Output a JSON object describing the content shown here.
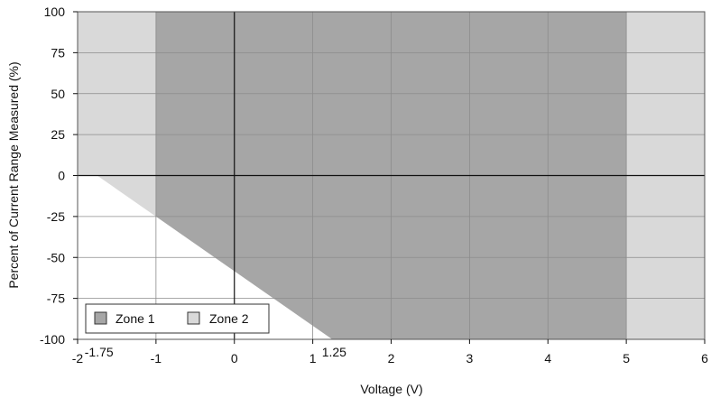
{
  "chart_data": {
    "type": "area",
    "title": "",
    "xlabel": "Voltage (V)",
    "ylabel": "Percent of Current Range Measured (%)",
    "xlim": [
      -2,
      6
    ],
    "ylim": [
      -100,
      100
    ],
    "grid": true,
    "x_ticks": [
      {
        "value": -2,
        "label": "-2"
      },
      {
        "value": -1,
        "label": "-1"
      },
      {
        "value": 0,
        "label": "0"
      },
      {
        "value": 1,
        "label": "1"
      },
      {
        "value": 2,
        "label": "2"
      },
      {
        "value": 3,
        "label": "3"
      },
      {
        "value": 4,
        "label": "4"
      },
      {
        "value": 5,
        "label": "5"
      },
      {
        "value": 6,
        "label": "6"
      }
    ],
    "y_ticks": [
      {
        "value": 100,
        "label": "100"
      },
      {
        "value": 75,
        "label": "75"
      },
      {
        "value": 50,
        "label": "50"
      },
      {
        "value": 25,
        "label": "25"
      },
      {
        "value": 0,
        "label": "0"
      },
      {
        "value": -25,
        "label": "-25"
      },
      {
        "value": -50,
        "label": "-50"
      },
      {
        "value": -75,
        "label": "-75"
      },
      {
        "value": -100,
        "label": "-100"
      }
    ],
    "annotations": [
      {
        "x": -1.75,
        "label": "-1.75"
      },
      {
        "x": 1.25,
        "label": "1.25"
      }
    ],
    "series": [
      {
        "name": "Zone 2",
        "color": "#d9d9d9",
        "polygon": [
          [
            -2,
            100
          ],
          [
            6,
            100
          ],
          [
            6,
            -100
          ],
          [
            1.25,
            -100
          ],
          [
            -1.75,
            0
          ],
          [
            -2,
            0
          ]
        ]
      },
      {
        "name": "Zone 1",
        "color": "#a6a6a6",
        "polygon": [
          [
            -1,
            100
          ],
          [
            5,
            100
          ],
          [
            5,
            -100
          ],
          [
            1.25,
            -100
          ],
          [
            -1,
            -25
          ]
        ]
      }
    ],
    "legend": {
      "placement": "bottom-left",
      "entries": [
        {
          "label": "Zone 1",
          "color": "#a6a6a6"
        },
        {
          "label": "Zone 2",
          "color": "#d9d9d9"
        }
      ]
    }
  }
}
